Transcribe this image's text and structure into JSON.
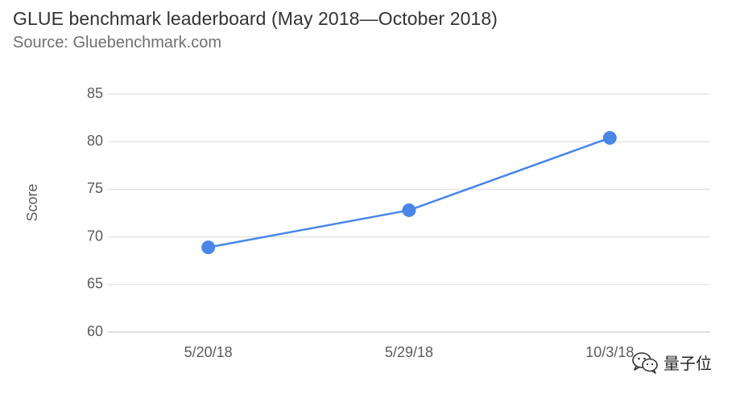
{
  "header": {
    "title": "GLUE benchmark leaderboard (May 2018—October 2018)",
    "subtitle": "Source: Gluebenchmark.com"
  },
  "watermark": {
    "text": "量子位",
    "icon": "wechat-icon"
  },
  "chart_data": {
    "type": "line",
    "title": "GLUE benchmark leaderboard (May 2018—October 2018)",
    "subtitle": "Source: Gluebenchmark.com",
    "xlabel": "",
    "ylabel": "Score",
    "categories": [
      "5/20/18",
      "5/29/18",
      "10/3/18"
    ],
    "series": [
      {
        "values": [
          68.9,
          72.8,
          80.4
        ]
      }
    ],
    "ylim": [
      60,
      85
    ],
    "yticks": [
      60,
      65,
      70,
      75,
      80,
      85
    ],
    "grid": true,
    "legend": "none",
    "colors": {
      "line": "#4a86e8",
      "grid": "#d9d9d9",
      "text": "#5b5b5b"
    }
  }
}
